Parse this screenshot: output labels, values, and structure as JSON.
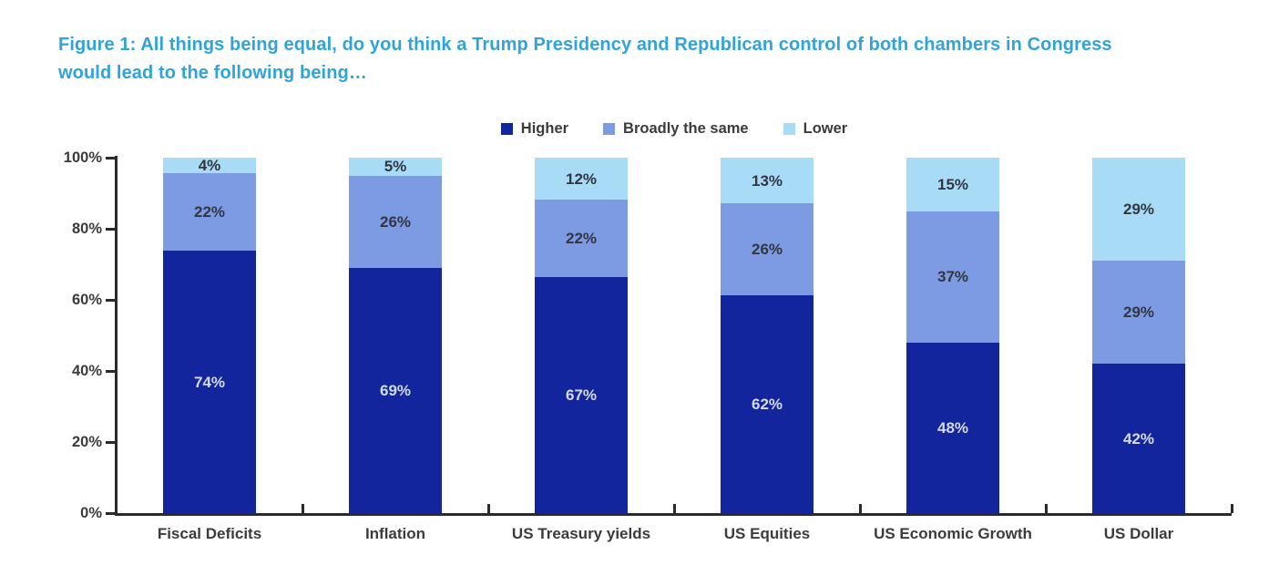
{
  "title": {
    "line1": "Figure 1: All things being equal, do you think a Trump Presidency and Republican control of both chambers in Congress",
    "line2": "would lead to the following being…",
    "color": "#2FA3DC"
  },
  "chart_data": {
    "type": "bar",
    "stacked": true,
    "title": "Figure 1: All things being equal, do you think a Trump Presidency and Republican control of both chambers in Congress would lead to the following being…",
    "categories": [
      "Fiscal Deficits",
      "Inflation",
      "US Treasury yields",
      "US Equities",
      "US Economic Growth",
      "US Dollar"
    ],
    "series": [
      {
        "name": "Higher",
        "color": "#13259D",
        "label_color": "#D5DBEF",
        "values": [
          74,
          69,
          67,
          62,
          48,
          42
        ]
      },
      {
        "name": "Broadly the same",
        "color": "#7D9BE2",
        "label_color": "#333640",
        "values": [
          22,
          26,
          22,
          26,
          37,
          29
        ]
      },
      {
        "name": "Lower",
        "color": "#A8DBF5",
        "label_color": "#333640",
        "values": [
          4,
          5,
          12,
          13,
          15,
          29
        ]
      }
    ],
    "value_suffix": "%",
    "y_ticks": [
      {
        "value": 0,
        "label": "0%"
      },
      {
        "value": 20,
        "label": "20%"
      },
      {
        "value": 40,
        "label": "40%"
      },
      {
        "value": 60,
        "label": "60%"
      },
      {
        "value": 80,
        "label": "80%"
      },
      {
        "value": 100,
        "label": "100%"
      }
    ],
    "ylim": [
      0,
      100
    ],
    "xlabel": "",
    "ylabel": "",
    "grid": false,
    "legend_position": "top"
  }
}
